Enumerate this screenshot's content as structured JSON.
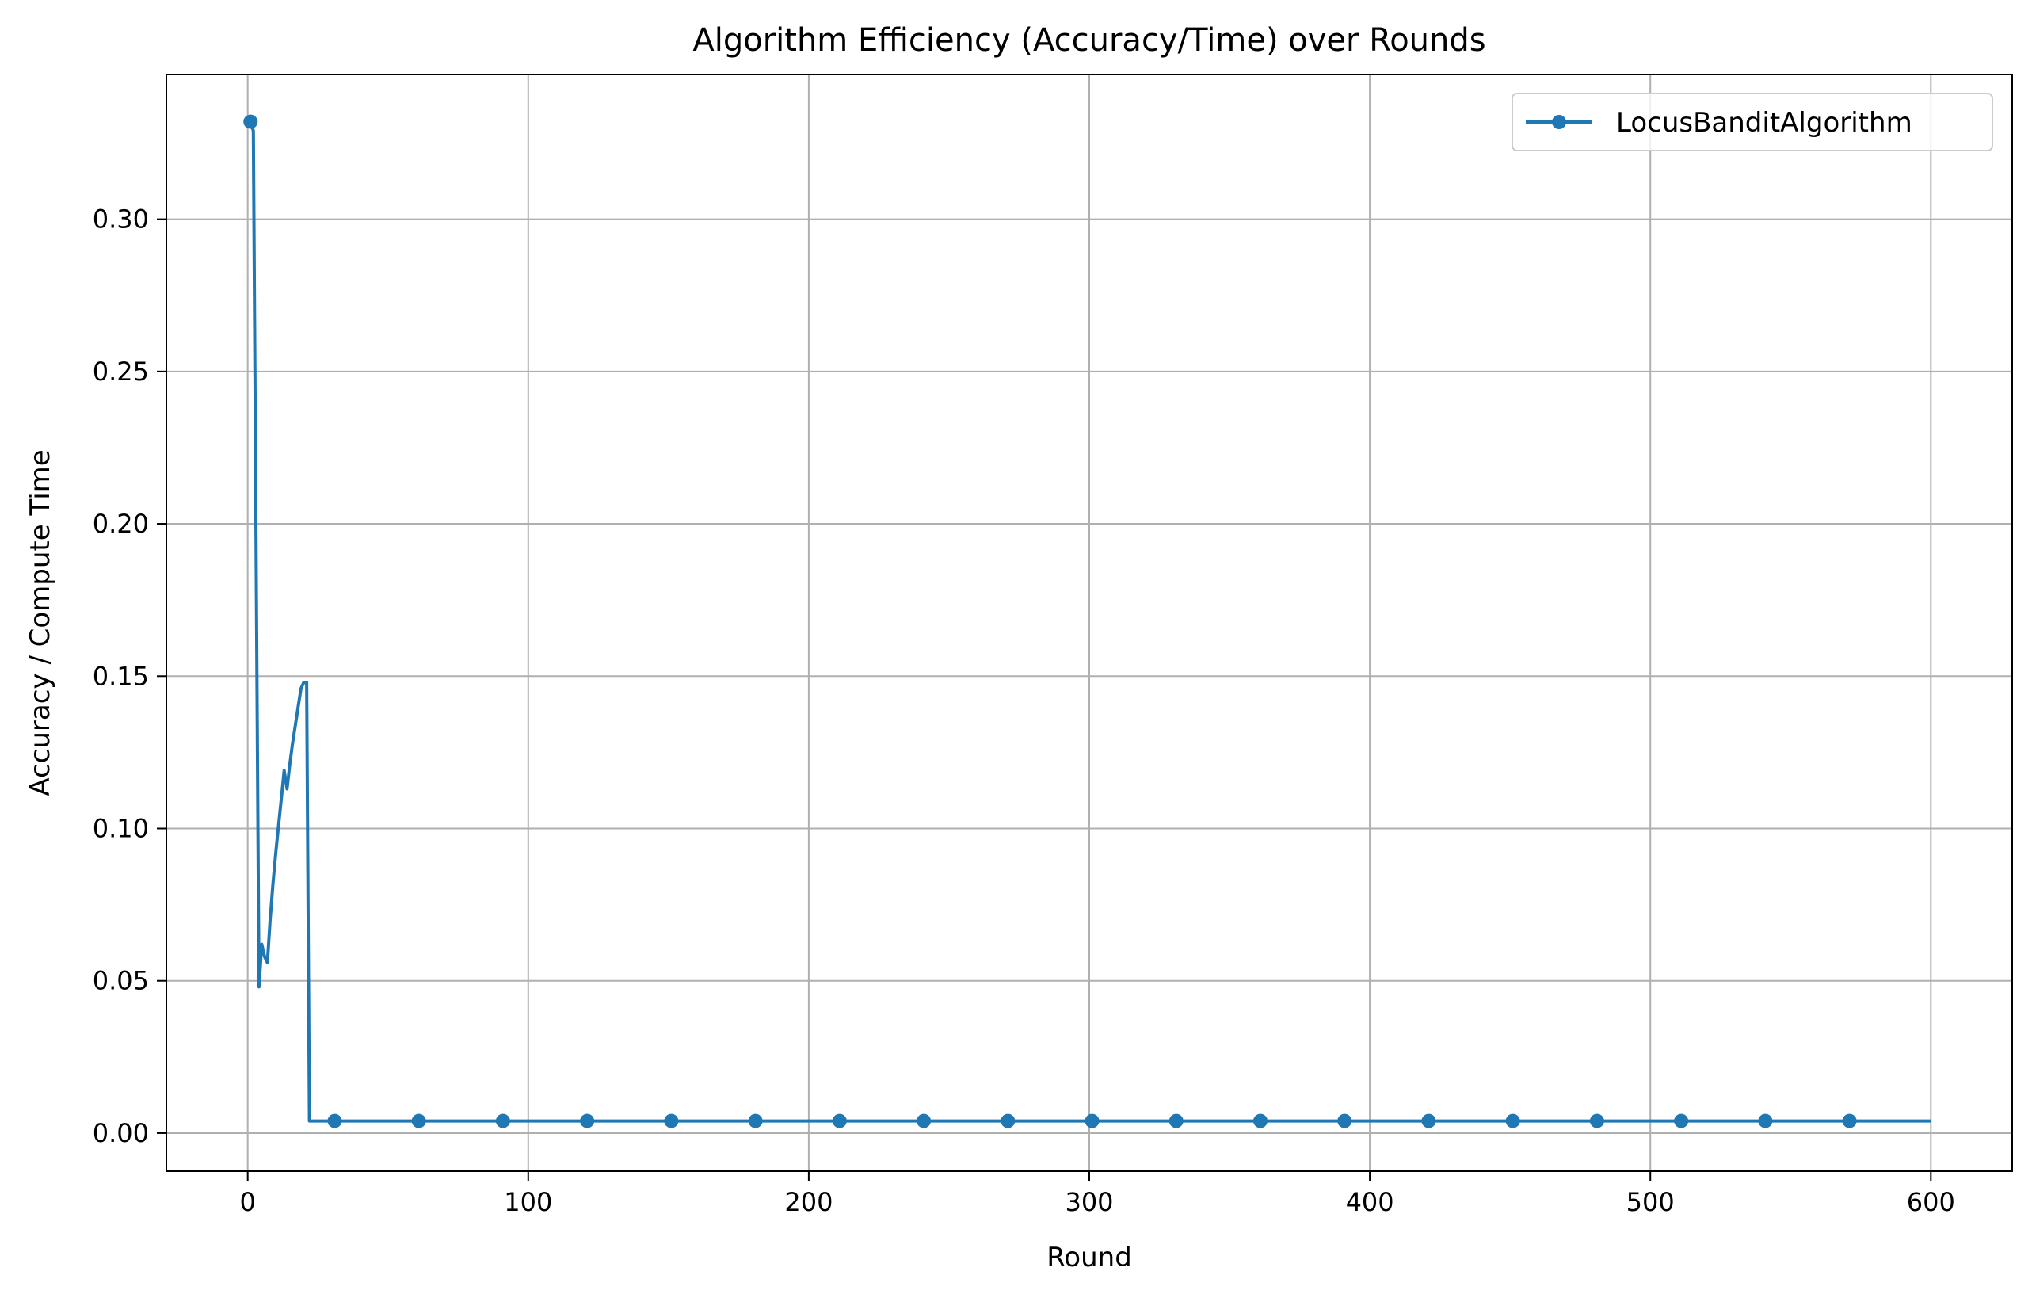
{
  "chart_data": {
    "type": "line",
    "title": "Algorithm Efficiency (Accuracy/Time) over Rounds",
    "xlabel": "Round",
    "ylabel": "Accuracy / Compute Time",
    "xlim": [
      -29,
      629
    ],
    "ylim": [
      -0.0125,
      0.3475
    ],
    "xticks": [
      0,
      100,
      200,
      300,
      400,
      500,
      600
    ],
    "xtick_labels": [
      "0",
      "100",
      "200",
      "300",
      "400",
      "500",
      "600"
    ],
    "yticks": [
      0.0,
      0.05,
      0.1,
      0.15,
      0.2,
      0.25,
      0.3
    ],
    "ytick_labels": [
      "0.00",
      "0.05",
      "0.10",
      "0.15",
      "0.20",
      "0.25",
      "0.30"
    ],
    "grid": true,
    "legend_position": "top-right",
    "series": [
      {
        "name": "LocusBanditAlgorithm",
        "color": "#1f77b4",
        "marker": "circle",
        "marker_every": 30,
        "x": [
          1,
          2,
          3,
          4,
          5,
          6,
          7,
          8,
          9,
          10,
          11,
          12,
          13,
          14,
          15,
          16,
          17,
          18,
          19,
          20,
          21,
          22,
          23,
          24,
          31,
          61,
          91,
          121,
          151,
          181,
          211,
          241,
          271,
          301,
          331,
          361,
          391,
          421,
          451,
          481,
          511,
          541,
          571,
          600
        ],
        "y": [
          0.332,
          0.329,
          0.19,
          0.048,
          0.062,
          0.058,
          0.056,
          0.07,
          0.082,
          0.092,
          0.101,
          0.11,
          0.119,
          0.113,
          0.121,
          0.128,
          0.134,
          0.14,
          0.146,
          0.148,
          0.148,
          0.004,
          0.004,
          0.004,
          0.004,
          0.004,
          0.004,
          0.004,
          0.004,
          0.004,
          0.004,
          0.004,
          0.004,
          0.004,
          0.004,
          0.004,
          0.004,
          0.004,
          0.004,
          0.004,
          0.004,
          0.004,
          0.004,
          0.004
        ],
        "marker_x": [
          1,
          31,
          61,
          91,
          121,
          151,
          181,
          211,
          241,
          271,
          301,
          331,
          361,
          391,
          421,
          451,
          481,
          511,
          541,
          571
        ],
        "marker_y": [
          0.332,
          0.004,
          0.004,
          0.004,
          0.004,
          0.004,
          0.004,
          0.004,
          0.004,
          0.004,
          0.004,
          0.004,
          0.004,
          0.004,
          0.004,
          0.004,
          0.004,
          0.004,
          0.004,
          0.004
        ]
      }
    ]
  }
}
